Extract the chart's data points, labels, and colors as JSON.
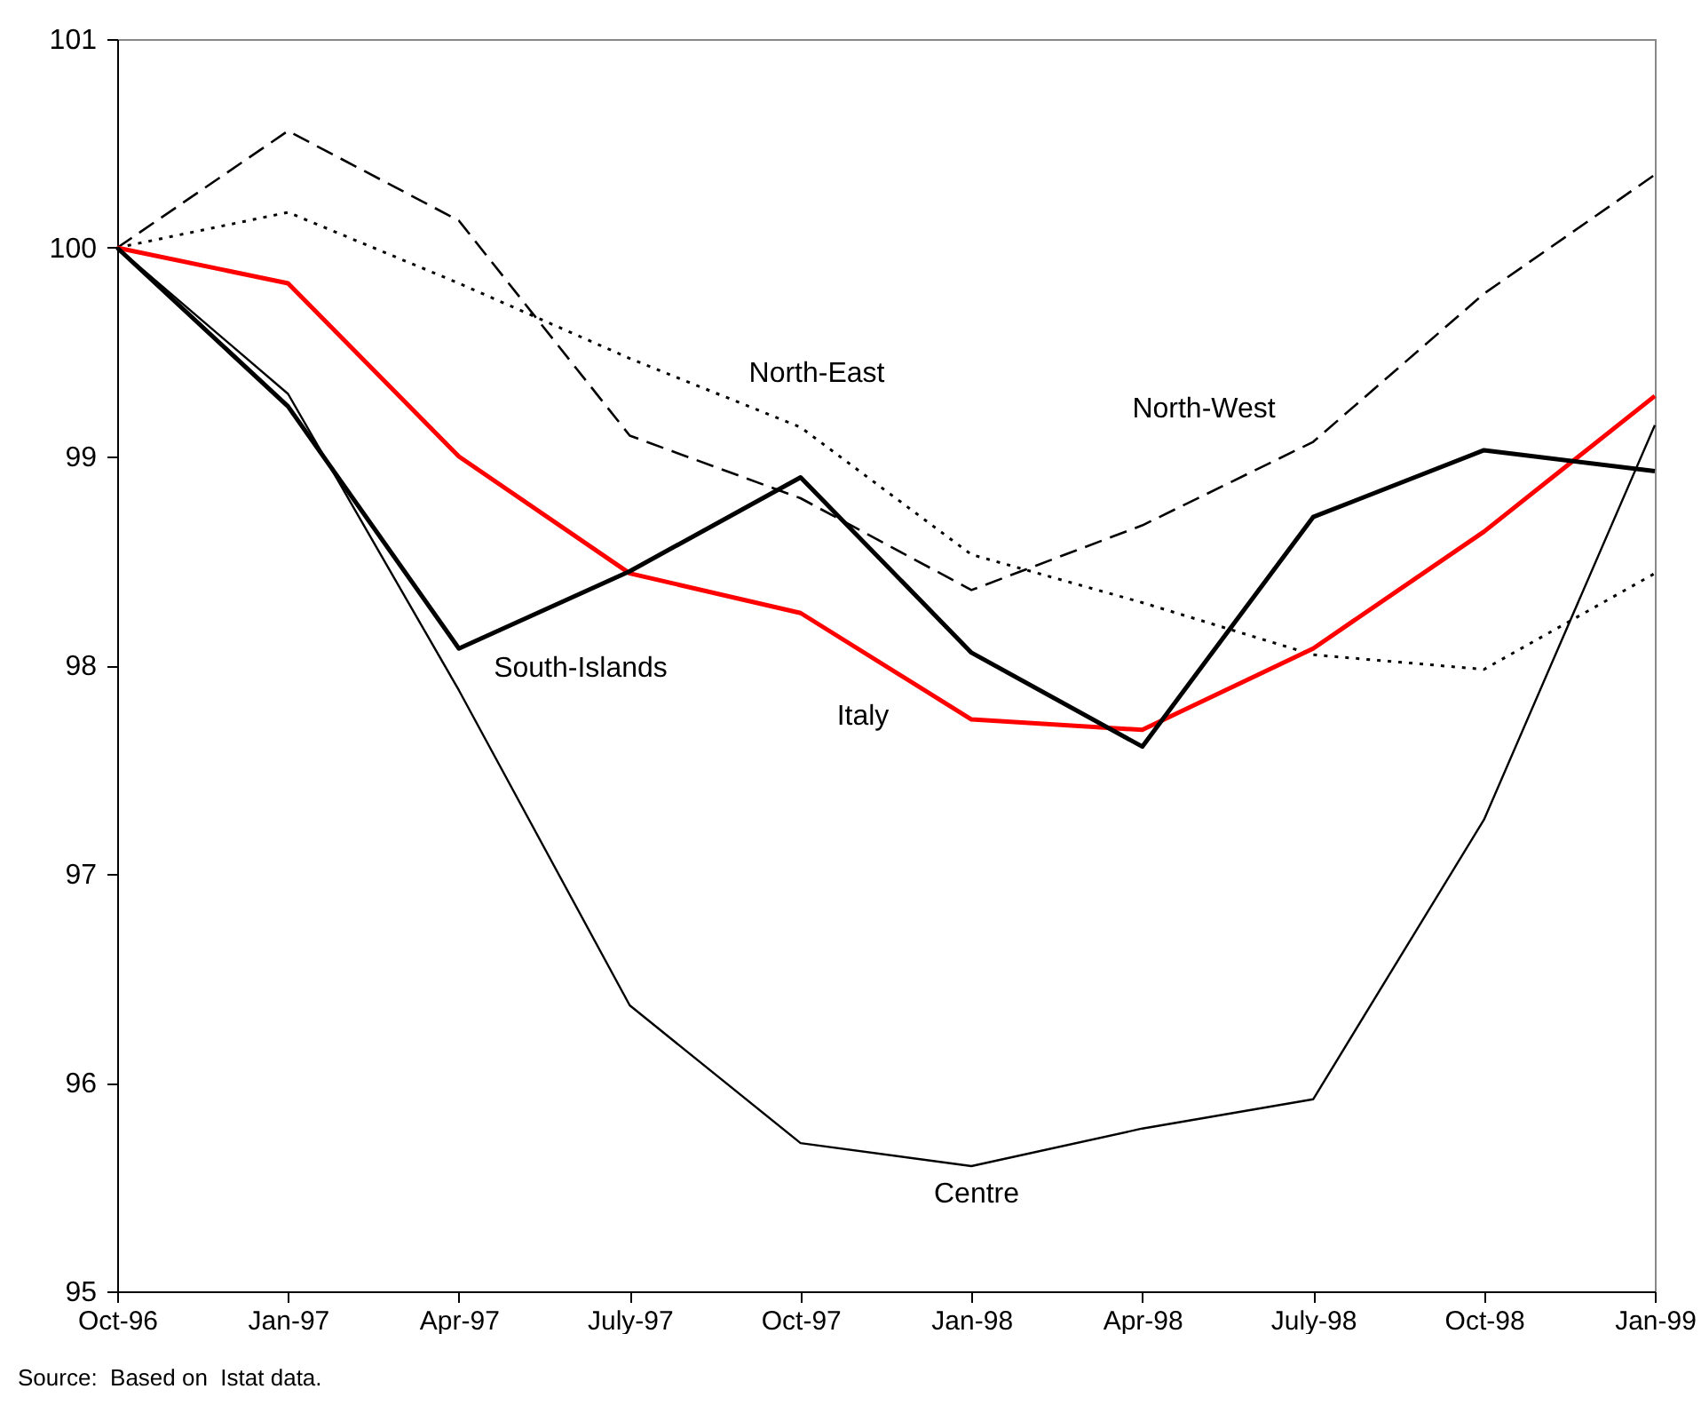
{
  "chart_data": {
    "type": "line",
    "categories": [
      "Oct-96",
      "Jan-97",
      "Apr-97",
      "July-97",
      "Oct-97",
      "Jan-98",
      "Apr-98",
      "July-98",
      "Oct-98",
      "Jan-99"
    ],
    "ylim": [
      95,
      101
    ],
    "yticks": [
      95,
      96,
      97,
      98,
      99,
      100,
      101
    ],
    "series": [
      {
        "name": "North-West",
        "color": "#000000",
        "line_style": "dashed",
        "values": [
          100,
          100.56,
          100.13,
          99.1,
          98.8,
          98.36,
          98.67,
          99.07,
          99.78,
          100.35
        ]
      },
      {
        "name": "North-East",
        "color": "#000000",
        "line_style": "dotted",
        "values": [
          100,
          100.17,
          99.83,
          99.47,
          99.14,
          98.53,
          98.3,
          98.05,
          97.98,
          98.44
        ]
      },
      {
        "name": "Italy",
        "color": "#ff0000",
        "line_style": "solid",
        "values": [
          100,
          99.83,
          99.0,
          98.44,
          98.25,
          97.74,
          97.69,
          98.08,
          98.64,
          99.29
        ]
      },
      {
        "name": "South-Islands",
        "color": "#000000",
        "line_style": "solid",
        "values": [
          100,
          99.24,
          98.08,
          98.45,
          98.9,
          98.06,
          97.61,
          98.71,
          99.03,
          98.93
        ]
      },
      {
        "name": "Centre",
        "color": "#000000",
        "line_style": "solid",
        "values": [
          100,
          99.3,
          97.88,
          96.37,
          95.71,
          95.6,
          95.78,
          95.92,
          97.26,
          99.15
        ]
      }
    ],
    "annotations": [
      "Source:  Based on  Istat data."
    ]
  }
}
